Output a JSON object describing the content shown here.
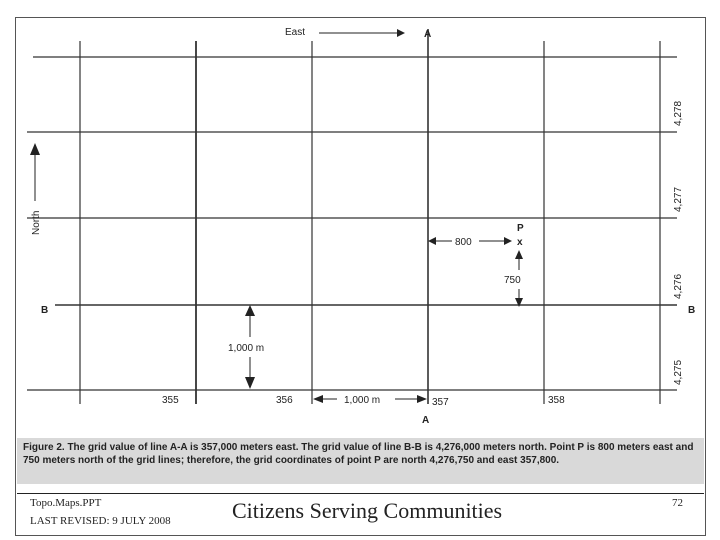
{
  "figure": {
    "east_label": "East",
    "north_label": "North",
    "line_a_top": "A",
    "line_a_bottom": "A",
    "line_b_left": "B",
    "line_b_right": "B",
    "easting_labels": [
      "355",
      "356",
      "357",
      "358"
    ],
    "northing_labels": [
      "4,278",
      "4,277",
      "4,276",
      "4,275"
    ],
    "point_label": "P",
    "point_mark": "x",
    "east_offset": "800",
    "north_offset": "750",
    "vertical_scale": "1,000 m",
    "horizontal_scale": "1,000 m"
  },
  "caption": "Figure 2. The grid value of line A-A is 357,000 meters east. The grid value of line B-B is 4,276,000 meters north. Point P is 800 meters east and 750 meters north of the grid lines; therefore, the grid coordinates of point P are north 4,276,750 and east 357,800.",
  "footer": {
    "file": "Topo.Maps.PPT",
    "revised": "LAST REVISED: 9 JULY 2008",
    "slogan": "Citizens Serving Communities",
    "page": "72"
  }
}
